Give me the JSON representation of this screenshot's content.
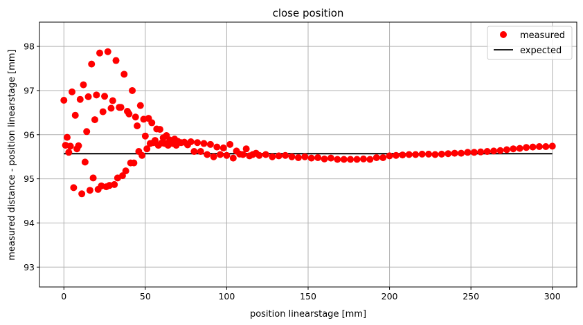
{
  "chart_data": {
    "type": "scatter",
    "title": "close position",
    "xlabel": "position linearstage [mm]",
    "ylabel": "measured distance - position linearstage [mm]",
    "xlim": [
      -15,
      315
    ],
    "ylim": [
      92.55,
      98.55
    ],
    "xticks": [
      0,
      50,
      100,
      150,
      200,
      250,
      300
    ],
    "yticks": [
      93,
      94,
      95,
      96,
      97,
      98
    ],
    "grid": true,
    "legend_position": "top-right",
    "colors": {
      "measured": "#ff0000",
      "expected": "#000000",
      "grid": "#b0b0b0"
    },
    "series": [
      {
        "name": "measured",
        "kind": "scatter",
        "x": [
          0,
          1,
          2,
          3,
          4,
          5,
          6,
          7,
          8,
          9,
          10,
          11,
          12,
          13,
          14,
          15,
          16,
          17,
          18,
          19,
          20,
          21,
          22,
          23,
          24,
          25,
          26,
          27,
          28,
          29,
          30,
          31,
          32,
          33,
          34,
          35,
          36,
          37,
          38,
          39,
          40,
          41,
          42,
          43,
          44,
          45,
          46,
          47,
          48,
          49,
          50,
          51,
          52,
          53,
          54,
          55,
          56,
          57,
          58,
          59,
          60,
          61,
          62,
          63,
          64,
          65,
          66,
          67,
          68,
          69,
          70,
          72,
          74,
          76,
          78,
          80,
          82,
          84,
          86,
          88,
          90,
          92,
          94,
          96,
          98,
          100,
          102,
          104,
          106,
          108,
          110,
          112,
          114,
          116,
          118,
          120,
          124,
          128,
          132,
          136,
          140,
          144,
          148,
          152,
          156,
          160,
          164,
          168,
          172,
          176,
          180,
          184,
          188,
          192,
          196,
          200,
          204,
          208,
          212,
          216,
          220,
          224,
          228,
          232,
          236,
          240,
          244,
          248,
          252,
          256,
          260,
          264,
          268,
          272,
          276,
          280,
          284,
          288,
          292,
          296,
          300
        ],
        "y": [
          96.78,
          95.76,
          95.94,
          95.6,
          95.74,
          96.97,
          94.8,
          96.44,
          95.68,
          95.75,
          96.8,
          94.66,
          97.13,
          95.38,
          96.07,
          96.86,
          94.74,
          97.6,
          95.02,
          96.34,
          96.9,
          94.76,
          97.85,
          94.84,
          96.52,
          96.87,
          94.82,
          97.88,
          94.85,
          96.6,
          96.77,
          94.87,
          97.68,
          95.02,
          96.62,
          96.62,
          95.07,
          97.37,
          95.18,
          96.53,
          96.47,
          95.36,
          97.0,
          95.36,
          96.4,
          96.2,
          95.62,
          96.66,
          95.53,
          96.35,
          95.97,
          95.68,
          96.37,
          95.8,
          96.27,
          95.82,
          95.87,
          96.13,
          95.76,
          96.12,
          95.81,
          95.93,
          95.8,
          95.98,
          95.76,
          95.88,
          95.84,
          95.8,
          95.9,
          95.76,
          95.85,
          95.82,
          95.83,
          95.77,
          95.84,
          95.62,
          95.82,
          95.62,
          95.8,
          95.55,
          95.78,
          95.5,
          95.72,
          95.55,
          95.7,
          95.53,
          95.78,
          95.47,
          95.63,
          95.56,
          95.55,
          95.68,
          95.52,
          95.55,
          95.58,
          95.53,
          95.55,
          95.5,
          95.52,
          95.53,
          95.5,
          95.48,
          95.5,
          95.47,
          95.48,
          95.45,
          95.47,
          95.44,
          95.44,
          95.44,
          95.44,
          95.45,
          95.44,
          95.48,
          95.48,
          95.52,
          95.53,
          95.54,
          95.55,
          95.55,
          95.56,
          95.56,
          95.55,
          95.56,
          95.57,
          95.58,
          95.58,
          95.6,
          95.6,
          95.61,
          95.62,
          95.63,
          95.64,
          95.66,
          95.68,
          95.69,
          95.71,
          95.72,
          95.73,
          95.73,
          95.74
        ]
      },
      {
        "name": "expected",
        "kind": "line",
        "x": [
          0,
          300
        ],
        "y": [
          95.57,
          95.57
        ]
      }
    ]
  }
}
